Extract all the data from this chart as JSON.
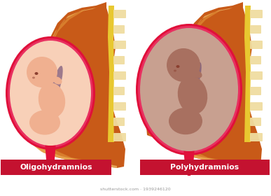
{
  "background_color": "#ffffff",
  "labels": [
    "Oligohydramnios",
    "Polyhydramnios"
  ],
  "label_bg_color": "#c41230",
  "label_text_color": "#ffffff",
  "body_dark": "#c85a18",
  "body_mid": "#d97020",
  "body_light": "#e8a040",
  "body_pale": "#f0c070",
  "spine_yellow": "#e8c830",
  "spine_notch": "#f0dda0",
  "uterus_red": "#e0103a",
  "uterus_red_inner": "#e83060",
  "sac_oligo": "#f8d0b8",
  "sac_poly": "#c8a090",
  "fetus_oligo_body": "#f0b090",
  "fetus_oligo_head": "#f0b090",
  "fetus_poly_body": "#a87060",
  "fetus_poly_head": "#a87060",
  "fetus_dark": "#8b4030",
  "fetus_purple": "#604070",
  "watermark": "#999999",
  "watermark_text": "shutterstock.com · 1939246120"
}
